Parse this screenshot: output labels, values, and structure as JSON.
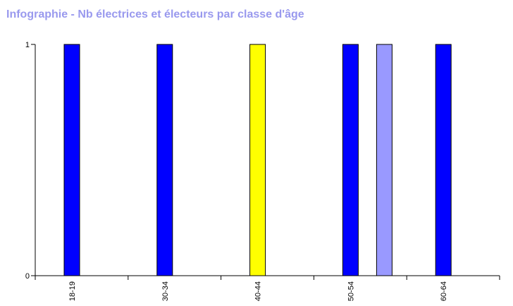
{
  "title": "Infographie - Nb électrices et électeurs par classe d'âge",
  "colors": {
    "title": "#9999ee",
    "axis": "#000000",
    "background": "#ffffff"
  },
  "chart_data": {
    "type": "bar",
    "title": "Infographie - Nb électrices et électeurs par classe d'âge",
    "xlabel": "",
    "ylabel": "",
    "ylim": [
      0,
      1
    ],
    "yticks": [
      "0",
      "1"
    ],
    "grid": false,
    "legend": "none",
    "categories": [
      "18-19",
      "30-34",
      "40-44",
      "50-54",
      "60-64"
    ],
    "bars": [
      {
        "category": "18-19",
        "slot": 0,
        "value": 1,
        "color": "#0000ff"
      },
      {
        "category": "30-34",
        "slot": 0,
        "value": 1,
        "color": "#0000ff"
      },
      {
        "category": "40-44",
        "slot": 0,
        "value": 1,
        "color": "#ffff00"
      },
      {
        "category": "50-54",
        "slot": 0,
        "value": 1,
        "color": "#0000ff"
      },
      {
        "category": "50-54",
        "slot": 1,
        "value": 1,
        "color": "#9999ff"
      },
      {
        "category": "60-64",
        "slot": 0,
        "value": 1,
        "color": "#0000ff"
      }
    ]
  }
}
